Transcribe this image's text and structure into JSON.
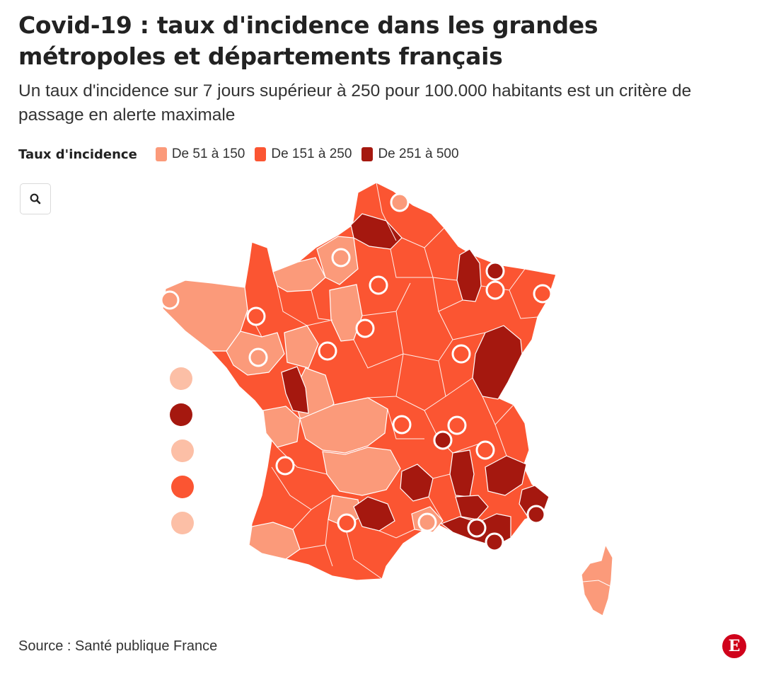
{
  "header": {
    "title": "Covid-19 : taux d'incidence dans les grandes métropoles et départements français",
    "subtitle": "Un taux d'incidence sur 7 jours supérieur à 250 pour 100.000 habitants est un critère de passage en alerte maximale"
  },
  "legend": {
    "title": "Taux d'incidence",
    "items": [
      {
        "label": "De 51 à 150",
        "color": "#fb9a7a"
      },
      {
        "label": "De 151 à 250",
        "color": "#fb5532"
      },
      {
        "label": "De 251 à 500",
        "color": "#a5180f"
      }
    ]
  },
  "map": {
    "zoom_icon": "search-icon",
    "legend_circles_icon": "circle-icon",
    "colors": {
      "low": "#fb9a7a",
      "mid": "#fb5532",
      "high": "#a5180f",
      "border": "#ffffff"
    }
  },
  "footer": {
    "source": "Source : Santé publique France",
    "logo_letter": "E"
  }
}
